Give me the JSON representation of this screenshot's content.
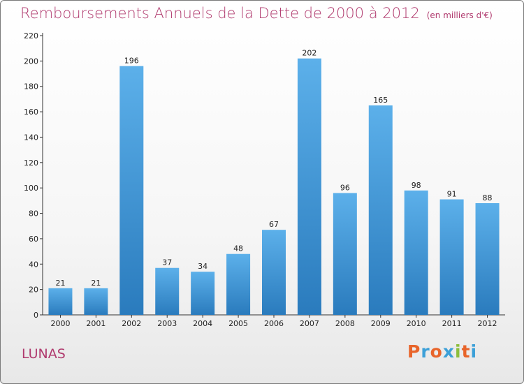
{
  "title": {
    "main": "Remboursements Annuels de la Dette de 2000 à 2012",
    "unit": "(en milliers d'€)"
  },
  "commune": "LUNAS",
  "logo": {
    "text": "Proxiti",
    "colors": [
      "#e8642a",
      "#3ca0d8",
      "#e8642a",
      "#3ca0d8",
      "#8cbe3c",
      "#e8642a",
      "#3ca0d8"
    ]
  },
  "colors": {
    "title": "#b03a6e",
    "bar_top": "#5cb0ea",
    "bar_bottom": "#2a7bbd"
  },
  "chart_data": {
    "type": "bar",
    "categories": [
      "2000",
      "2001",
      "2002",
      "2003",
      "2004",
      "2005",
      "2006",
      "2007",
      "2008",
      "2009",
      "2010",
      "2011",
      "2012"
    ],
    "values": [
      21,
      21,
      196,
      37,
      34,
      48,
      67,
      202,
      96,
      165,
      98,
      91,
      88
    ],
    "title": "Remboursements Annuels de la Dette de 2000 à 2012",
    "xlabel": "",
    "ylabel": "",
    "ylim": [
      0,
      220
    ],
    "yticks": [
      0,
      20,
      40,
      60,
      80,
      100,
      120,
      140,
      160,
      180,
      200,
      220
    ],
    "grid": false,
    "data_labels": true
  }
}
